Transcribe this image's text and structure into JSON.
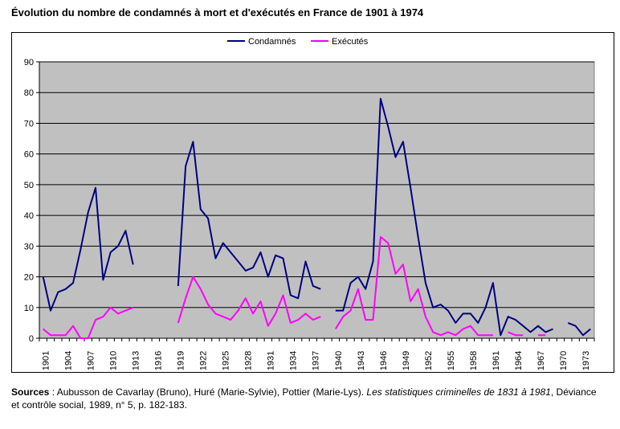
{
  "title": "Évolution du nombre de condamnés à mort et d'exécutés en France de 1901 à 1974",
  "source": {
    "label": "Sources",
    "sep": " : ",
    "authors": "Aubusson de Cavarlay (Bruno), Huré (Marie-Sylvie), Pottier (Marie-Lys). ",
    "book": "Les statistiques criminelles de 1831 à 1981",
    "rest": ", Déviance et contrôle social, 1989, n° 5, p. 182-183."
  },
  "chart_data": {
    "type": "line",
    "title": "Évolution du nombre de condamnés à mort et d'exécutés en France de 1901 à 1974",
    "xlabel": "",
    "ylabel": "",
    "ylim": [
      0,
      90
    ],
    "yticks": [
      0,
      10,
      20,
      30,
      40,
      50,
      60,
      70,
      80,
      90
    ],
    "xrange": [
      1901,
      1974
    ],
    "xtick_labels": [
      1901,
      1904,
      1907,
      1910,
      1913,
      1916,
      1919,
      1922,
      1925,
      1928,
      1931,
      1934,
      1937,
      1940,
      1943,
      1946,
      1949,
      1952,
      1955,
      1958,
      1961,
      1964,
      1967,
      1970,
      1973
    ],
    "grid": true,
    "plot_background": "#c0c0c0",
    "legend_placement": "top-center",
    "series": [
      {
        "name": "Condamnés",
        "color": "#000080",
        "points": [
          [
            [
              1901,
              20
            ],
            [
              1902,
              9
            ],
            [
              1903,
              15
            ],
            [
              1904,
              16
            ],
            [
              1905,
              18
            ],
            [
              1906,
              29
            ],
            [
              1907,
              41
            ],
            [
              1908,
              49
            ],
            [
              1909,
              19
            ],
            [
              1910,
              28
            ],
            [
              1911,
              30
            ],
            [
              1912,
              35
            ],
            [
              1913,
              24
            ]
          ],
          [
            [
              1919,
              17
            ],
            [
              1920,
              56
            ],
            [
              1921,
              64
            ],
            [
              1922,
              42
            ],
            [
              1923,
              39
            ],
            [
              1924,
              26
            ],
            [
              1925,
              31
            ],
            [
              1926,
              28
            ],
            [
              1927,
              25
            ],
            [
              1928,
              22
            ],
            [
              1929,
              23
            ],
            [
              1930,
              28
            ],
            [
              1931,
              20
            ],
            [
              1932,
              27
            ],
            [
              1933,
              26
            ],
            [
              1934,
              14
            ],
            [
              1935,
              13
            ],
            [
              1936,
              25
            ],
            [
              1937,
              17
            ],
            [
              1938,
              16
            ]
          ],
          [
            [
              1940,
              9
            ],
            [
              1941,
              9
            ],
            [
              1942,
              18
            ],
            [
              1943,
              20
            ],
            [
              1944,
              16
            ],
            [
              1945,
              25
            ],
            [
              1946,
              78
            ],
            [
              1947,
              69
            ],
            [
              1948,
              59
            ],
            [
              1949,
              64
            ],
            [
              1950,
              49
            ],
            [
              1951,
              33
            ],
            [
              1952,
              18
            ],
            [
              1953,
              10
            ],
            [
              1954,
              11
            ],
            [
              1955,
              9
            ],
            [
              1956,
              5
            ],
            [
              1957,
              8
            ],
            [
              1958,
              8
            ],
            [
              1959,
              5
            ],
            [
              1960,
              10
            ],
            [
              1961,
              18
            ],
            [
              1962,
              1
            ],
            [
              1963,
              7
            ],
            [
              1964,
              6
            ],
            [
              1965,
              4
            ],
            [
              1966,
              2
            ],
            [
              1967,
              4
            ],
            [
              1968,
              2
            ],
            [
              1969,
              3
            ]
          ],
          [
            [
              1971,
              5
            ],
            [
              1972,
              4
            ],
            [
              1973,
              1
            ],
            [
              1974,
              3
            ]
          ]
        ]
      },
      {
        "name": "Exécutés",
        "color": "#ff00ff",
        "points": [
          [
            [
              1901,
              3
            ],
            [
              1902,
              1
            ],
            [
              1903,
              1
            ],
            [
              1904,
              1
            ],
            [
              1905,
              4
            ],
            [
              1906,
              0
            ],
            [
              1907,
              0
            ],
            [
              1908,
              6
            ],
            [
              1909,
              7
            ],
            [
              1910,
              10
            ],
            [
              1911,
              8
            ],
            [
              1912,
              9
            ],
            [
              1913,
              10
            ]
          ],
          [
            [
              1919,
              5
            ],
            [
              1920,
              13
            ],
            [
              1921,
              20
            ],
            [
              1922,
              16
            ],
            [
              1923,
              11
            ],
            [
              1924,
              8
            ],
            [
              1925,
              7
            ],
            [
              1926,
              6
            ],
            [
              1927,
              9
            ],
            [
              1928,
              13
            ],
            [
              1929,
              8
            ],
            [
              1930,
              12
            ],
            [
              1931,
              4
            ],
            [
              1932,
              8
            ],
            [
              1933,
              14
            ],
            [
              1934,
              5
            ],
            [
              1935,
              6
            ],
            [
              1936,
              8
            ],
            [
              1937,
              6
            ],
            [
              1938,
              7
            ]
          ],
          [
            [
              1940,
              3
            ],
            [
              1941,
              7
            ],
            [
              1942,
              9
            ],
            [
              1943,
              16
            ],
            [
              1944,
              6
            ],
            [
              1945,
              6
            ],
            [
              1946,
              33
            ],
            [
              1947,
              31
            ],
            [
              1948,
              21
            ],
            [
              1949,
              24
            ],
            [
              1950,
              12
            ],
            [
              1951,
              16
            ],
            [
              1952,
              7
            ],
            [
              1953,
              2
            ],
            [
              1954,
              1
            ],
            [
              1955,
              2
            ],
            [
              1956,
              1
            ],
            [
              1957,
              3
            ],
            [
              1958,
              4
            ],
            [
              1959,
              1
            ],
            [
              1960,
              1
            ],
            [
              1961,
              1
            ]
          ],
          [
            [
              1963,
              2
            ],
            [
              1964,
              1
            ],
            [
              1965,
              1
            ]
          ],
          [
            [
              1967,
              1
            ],
            [
              1968,
              1
            ]
          ]
        ]
      }
    ]
  }
}
